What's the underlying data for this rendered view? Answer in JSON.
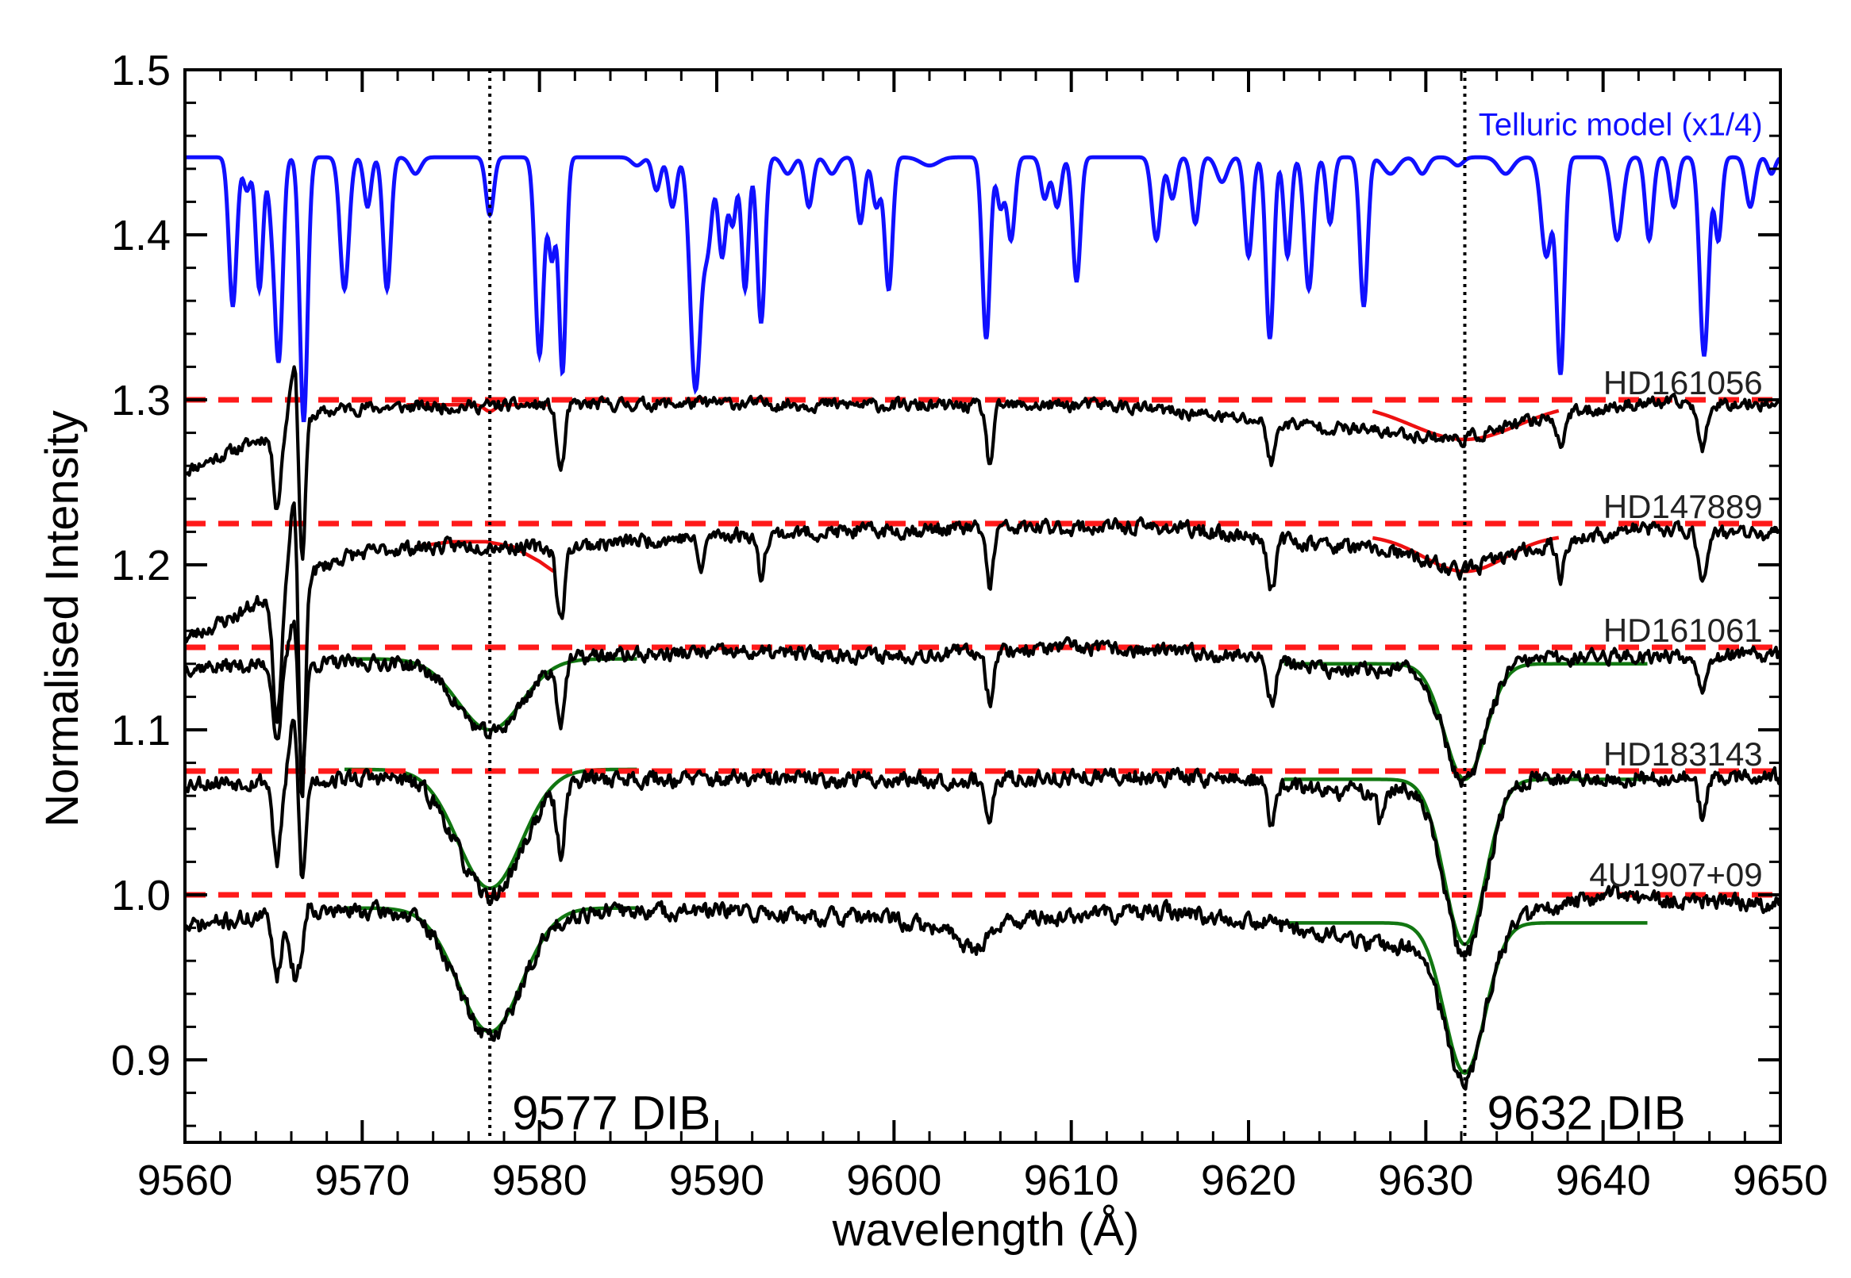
{
  "chart_data": {
    "type": "line",
    "xlabel": "wavelength (Å)",
    "ylabel": "Normalised Intensity",
    "xlim": [
      9560,
      9650
    ],
    "ylim": [
      0.85,
      1.5
    ],
    "x_ticks": [
      9560,
      9570,
      9580,
      9590,
      9600,
      9610,
      9620,
      9630,
      9640,
      9650
    ],
    "x_tick_labels": [
      "9560",
      "9570",
      "9580",
      "9590",
      "9600",
      "9610",
      "9620",
      "9630",
      "9640",
      "9650"
    ],
    "y_ticks": [
      0.9,
      1.0,
      1.1,
      1.2,
      1.3,
      1.4,
      1.5
    ],
    "y_tick_labels": [
      "0.9",
      "1.0",
      "1.1",
      "1.2",
      "1.3",
      "1.4",
      "1.5"
    ],
    "grid": false,
    "legend": "none",
    "telluric": {
      "name": "Telluric model (x1/4)",
      "color": "#1010ff",
      "continuum": 1.447,
      "lines": [
        [
          9562.7,
          0.09,
          0.22
        ],
        [
          9563.5,
          0.02,
          0.2
        ],
        [
          9564.2,
          0.08,
          0.2
        ],
        [
          9564.9,
          0.03,
          0.2
        ],
        [
          9565.3,
          0.12,
          0.22
        ],
        [
          9566.7,
          0.16,
          0.22
        ],
        [
          9569.0,
          0.08,
          0.25
        ],
        [
          9570.3,
          0.03,
          0.2
        ],
        [
          9571.4,
          0.08,
          0.22
        ],
        [
          9573.0,
          0.01,
          0.3
        ],
        [
          9577.2,
          0.035,
          0.22
        ],
        [
          9580.0,
          0.12,
          0.24
        ],
        [
          9580.7,
          0.06,
          0.2
        ],
        [
          9581.3,
          0.13,
          0.2
        ],
        [
          9585.5,
          0.005,
          0.3
        ],
        [
          9586.6,
          0.02,
          0.22
        ],
        [
          9587.5,
          0.03,
          0.22
        ],
        [
          9588.8,
          0.14,
          0.3
        ],
        [
          9589.5,
          0.05,
          0.25
        ],
        [
          9590.3,
          0.06,
          0.22
        ],
        [
          9590.9,
          0.04,
          0.2
        ],
        [
          9591.6,
          0.08,
          0.2
        ],
        [
          9592.5,
          0.1,
          0.22
        ],
        [
          9594.0,
          0.01,
          0.3
        ],
        [
          9595.2,
          0.03,
          0.22
        ],
        [
          9596.5,
          0.01,
          0.3
        ],
        [
          9598.1,
          0.04,
          0.22
        ],
        [
          9599.0,
          0.03,
          0.22
        ],
        [
          9599.7,
          0.08,
          0.22
        ],
        [
          9602.0,
          0.005,
          0.5
        ],
        [
          9605.2,
          0.11,
          0.22
        ],
        [
          9606.0,
          0.03,
          0.2
        ],
        [
          9606.6,
          0.05,
          0.22
        ],
        [
          9608.5,
          0.025,
          0.22
        ],
        [
          9609.2,
          0.03,
          0.22
        ],
        [
          9610.3,
          0.075,
          0.22
        ],
        [
          9614.8,
          0.05,
          0.25
        ],
        [
          9615.7,
          0.025,
          0.22
        ],
        [
          9617.0,
          0.04,
          0.22
        ],
        [
          9618.5,
          0.015,
          0.3
        ],
        [
          9620.0,
          0.06,
          0.22
        ],
        [
          9621.2,
          0.11,
          0.22
        ],
        [
          9622.2,
          0.06,
          0.2
        ],
        [
          9623.4,
          0.08,
          0.25
        ],
        [
          9624.6,
          0.04,
          0.2
        ],
        [
          9626.5,
          0.09,
          0.22
        ],
        [
          9628.0,
          0.01,
          0.4
        ],
        [
          9629.8,
          0.01,
          0.3
        ],
        [
          9631.8,
          0.005,
          0.3
        ],
        [
          9634.5,
          0.01,
          0.4
        ],
        [
          9636.8,
          0.06,
          0.3
        ],
        [
          9637.6,
          0.13,
          0.22
        ],
        [
          9640.8,
          0.05,
          0.3
        ],
        [
          9642.6,
          0.05,
          0.22
        ],
        [
          9644.0,
          0.03,
          0.22
        ],
        [
          9645.7,
          0.12,
          0.25
        ],
        [
          9646.5,
          0.05,
          0.2
        ],
        [
          9648.3,
          0.03,
          0.25
        ],
        [
          9649.5,
          0.01,
          0.2
        ]
      ]
    },
    "series": [
      {
        "name": "HD161056",
        "color": "#000000",
        "continuum": 1.298,
        "noise": 0.006,
        "seed": 11,
        "drift": [
          [
            9560,
            1.257
          ],
          [
            9564,
            1.275
          ],
          [
            9567,
            1.29
          ],
          [
            9569,
            1.295
          ],
          [
            9575,
            1.296
          ],
          [
            9590,
            1.298
          ],
          [
            9604,
            1.296
          ],
          [
            9612,
            1.297
          ],
          [
            9620,
            1.288
          ],
          [
            9626,
            1.282
          ],
          [
            9632,
            1.276
          ],
          [
            9637,
            1.29
          ],
          [
            9642,
            1.298
          ],
          [
            9650,
            1.298
          ]
        ],
        "dips": [
          [
            9565.2,
            0.045,
            0.22
          ],
          [
            9566.6,
            0.095,
            0.18
          ],
          [
            9581.2,
            0.04,
            0.22
          ],
          [
            9605.4,
            0.035,
            0.2
          ],
          [
            9621.3,
            0.025,
            0.22
          ],
          [
            9637.6,
            0.02,
            0.2
          ],
          [
            9645.6,
            0.03,
            0.22
          ]
        ],
        "bumps": [
          [
            9566.2,
            0.04,
            0.25
          ]
        ],
        "dib_regions": []
      },
      {
        "name": "HD147889",
        "color": "#000000",
        "continuum": 1.224,
        "noise": 0.007,
        "seed": 23,
        "drift": [
          [
            9560,
            1.155
          ],
          [
            9563,
            1.17
          ],
          [
            9566,
            1.19
          ],
          [
            9569,
            1.205
          ],
          [
            9572,
            1.21
          ],
          [
            9577,
            1.212
          ],
          [
            9580,
            1.21
          ],
          [
            9590,
            1.218
          ],
          [
            9604,
            1.222
          ],
          [
            9615,
            1.223
          ],
          [
            9622,
            1.215
          ],
          [
            9628,
            1.208
          ],
          [
            9632,
            1.196
          ],
          [
            9636,
            1.21
          ],
          [
            9642,
            1.222
          ],
          [
            9650,
            1.218
          ]
        ],
        "dips": [
          [
            9565.2,
            0.08,
            0.22
          ],
          [
            9566.6,
            0.15,
            0.18
          ],
          [
            9581.2,
            0.045,
            0.22
          ],
          [
            9589.1,
            0.02,
            0.2
          ],
          [
            9592.5,
            0.025,
            0.2
          ],
          [
            9605.4,
            0.035,
            0.2
          ],
          [
            9621.3,
            0.03,
            0.22
          ],
          [
            9637.6,
            0.02,
            0.2
          ],
          [
            9645.6,
            0.03,
            0.22
          ]
        ],
        "bumps": [
          [
            9566.2,
            0.05,
            0.25
          ]
        ],
        "dib_regions": []
      },
      {
        "name": "HD161061",
        "color": "#000000",
        "continuum": 1.15,
        "noise": 0.007,
        "seed": 37,
        "drift": [
          [
            9560,
            1.138
          ],
          [
            9575,
            1.142
          ],
          [
            9590,
            1.147
          ],
          [
            9600,
            1.145
          ],
          [
            9610,
            1.15
          ],
          [
            9620,
            1.145
          ],
          [
            9625,
            1.135
          ],
          [
            9640,
            1.145
          ],
          [
            9650,
            1.145
          ]
        ],
        "dips": [
          [
            9565.2,
            0.045,
            0.22
          ],
          [
            9566.6,
            0.07,
            0.2
          ],
          [
            9581.2,
            0.035,
            0.22
          ],
          [
            9605.4,
            0.03,
            0.2
          ],
          [
            9621.3,
            0.025,
            0.22
          ],
          [
            9645.6,
            0.02,
            0.22
          ]
        ],
        "bumps": [
          [
            9566.2,
            0.03,
            0.25
          ]
        ],
        "dib_regions": [
          [
            9577.2,
            0.045,
            1.8
          ],
          [
            9632.2,
            0.072,
            1.15
          ]
        ]
      },
      {
        "name": "HD183143",
        "color": "#000000",
        "continuum": 1.075,
        "noise": 0.008,
        "seed": 53,
        "drift": [
          [
            9560,
            1.068
          ],
          [
            9575,
            1.072
          ],
          [
            9590,
            1.07
          ],
          [
            9605,
            1.07
          ],
          [
            9615,
            1.072
          ],
          [
            9620,
            1.07
          ],
          [
            9625,
            1.062
          ],
          [
            9635,
            1.07
          ],
          [
            9650,
            1.072
          ]
        ],
        "dips": [
          [
            9565.2,
            0.05,
            0.22
          ],
          [
            9566.6,
            0.07,
            0.2
          ],
          [
            9581.2,
            0.04,
            0.22
          ],
          [
            9605.4,
            0.03,
            0.2
          ],
          [
            9621.3,
            0.025,
            0.22
          ],
          [
            9627.5,
            0.02,
            0.22
          ],
          [
            9645.6,
            0.025,
            0.22
          ]
        ],
        "bumps": [
          [
            9566.2,
            0.04,
            0.25
          ]
        ],
        "dib_regions": [
          [
            9577.2,
            0.073,
            1.8
          ],
          [
            9632.2,
            0.105,
            1.15
          ]
        ]
      },
      {
        "name": "4U1907+09",
        "color": "#000000",
        "continuum": 1.0,
        "noise": 0.008,
        "seed": 71,
        "drift": [
          [
            9560,
            0.98
          ],
          [
            9563,
            0.985
          ],
          [
            9568,
            0.99
          ],
          [
            9575,
            0.99
          ],
          [
            9590,
            0.99
          ],
          [
            9600,
            0.985
          ],
          [
            9604,
            0.975
          ],
          [
            9607,
            0.985
          ],
          [
            9615,
            0.99
          ],
          [
            9620,
            0.985
          ],
          [
            9625,
            0.975
          ],
          [
            9628,
            0.968
          ],
          [
            9635,
            0.985
          ],
          [
            9640,
            1.0
          ],
          [
            9645,
            0.995
          ],
          [
            9650,
            0.995
          ]
        ],
        "dips": [
          [
            9565.2,
            0.035,
            0.22
          ],
          [
            9566.3,
            0.04,
            0.35
          ],
          [
            9604.6,
            0.01,
            0.5
          ]
        ],
        "bumps": [
          [
            9566.9,
            0.01,
            0.3
          ]
        ],
        "dib_regions": [
          [
            9577.2,
            0.075,
            1.8
          ],
          [
            9632.2,
            0.09,
            1.15
          ]
        ]
      }
    ],
    "reference_lines": [
      {
        "y": 1.3,
        "color": "#ff1a1a"
      },
      {
        "y": 1.225,
        "color": "#ff1a1a"
      },
      {
        "y": 1.15,
        "color": "#ff1a1a"
      },
      {
        "y": 1.075,
        "color": "#ff1a1a"
      },
      {
        "y": 1.0,
        "color": "#ff1a1a"
      }
    ],
    "red_fits": [
      {
        "type": "dib",
        "color": "#ee1111",
        "continuum": 1.297,
        "center": 9577.2,
        "depth": 0.004,
        "sigma": 0.3,
        "range": [
          9572.5,
          9580.5
        ]
      },
      {
        "type": "poly",
        "color": "#ee1111",
        "points": [
          [
            9573.0,
            1.211
          ],
          [
            9575.0,
            1.214
          ],
          [
            9577.0,
            1.214
          ],
          [
            9578.5,
            1.211
          ],
          [
            9580.0,
            1.202
          ],
          [
            9580.8,
            1.196
          ]
        ]
      },
      {
        "type": "dib",
        "color": "#ee1111",
        "continuum": 1.298,
        "center": 9632.2,
        "depth": 0.022,
        "sigma": 3.0,
        "range": [
          9627.0,
          9637.5
        ]
      },
      {
        "type": "dib",
        "color": "#ee1111",
        "continuum": 1.218,
        "center": 9632.2,
        "depth": 0.022,
        "sigma": 2.3,
        "range": [
          9627.0,
          9637.5
        ]
      }
    ],
    "green_fits": [
      {
        "color": "#117711",
        "continuum": 1.143,
        "center": 9577.2,
        "depth": 0.043,
        "sigma": 1.8,
        "range": [
          9569.0,
          9585.5
        ]
      },
      {
        "color": "#117711",
        "continuum": 1.14,
        "center": 9632.2,
        "depth": 0.07,
        "sigma": 1.15,
        "range": [
          9622.0,
          9642.5
        ]
      },
      {
        "color": "#117711",
        "continuum": 1.076,
        "center": 9577.2,
        "depth": 0.072,
        "sigma": 1.8,
        "range": [
          9569.0,
          9585.5
        ]
      },
      {
        "color": "#117711",
        "continuum": 1.07,
        "center": 9632.2,
        "depth": 0.1,
        "sigma": 1.15,
        "range": [
          9622.0,
          9642.5
        ]
      },
      {
        "color": "#117711",
        "continuum": 0.992,
        "center": 9577.2,
        "depth": 0.075,
        "sigma": 1.8,
        "range": [
          9569.0,
          9585.5
        ]
      },
      {
        "color": "#117711",
        "continuum": 0.983,
        "center": 9632.2,
        "depth": 0.091,
        "sigma": 1.15,
        "range": [
          9622.0,
          9642.5
        ]
      }
    ],
    "vertical_markers": [
      {
        "x": 9577.2,
        "label": "9577 DIB"
      },
      {
        "x": 9632.2,
        "label": "9632 DIB"
      }
    ],
    "annotations": [
      {
        "text": "HD161056",
        "x": 9649,
        "y": 1.31
      },
      {
        "text": "HD147889",
        "x": 9649,
        "y": 1.235
      },
      {
        "text": "HD161061",
        "x": 9649,
        "y": 1.16
      },
      {
        "text": "HD183143",
        "x": 9649,
        "y": 1.085
      },
      {
        "text": "4U1907+09",
        "x": 9649,
        "y": 1.012
      }
    ]
  }
}
